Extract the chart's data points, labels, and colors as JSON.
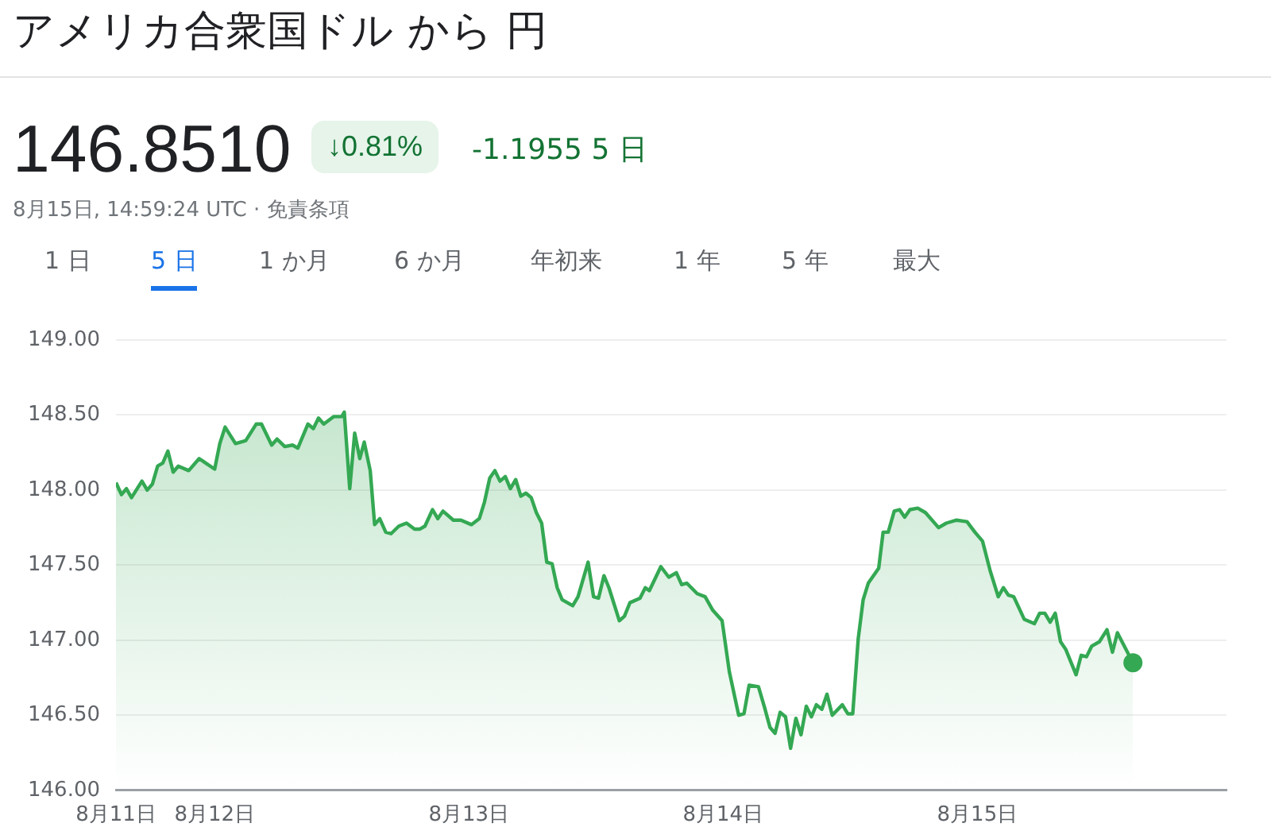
{
  "chart_data": {
    "type": "area",
    "title": "アメリカ合衆国ドル から 円",
    "annotations": [
      "146.8510",
      "↓0.81%",
      "-1.1955 5 日",
      "8月15日, 14:59:24 UTC · 免責条項",
      "1 日",
      "5 日",
      "1 か月",
      "6 か月",
      "年初来",
      "1 年",
      "5 年",
      "最大"
    ],
    "series": [
      {
        "color": "#34a853",
        "x": [
          "--08-11T14:41",
          "--08-11T15:12",
          "--08-11T15:40",
          "--08-11T16:09",
          "--08-11T17:08",
          "--08-11T17:38",
          "--08-11T18:07",
          "--08-11T18:37",
          "--08-11T19:06",
          "--08-11T19:35",
          "--08-11T20:05",
          "--08-11T20:34",
          "--08-11T21:33",
          "--08-11T22:32",
          "--08-12T00:00",
          "--08-12T00:29",
          "--08-12T00:59",
          "--08-12T01:58",
          "--08-12T02:56",
          "--08-12T03:55",
          "--08-12T04:25",
          "--08-12T05:23",
          "--08-12T05:53",
          "--08-12T06:37",
          "--08-12T07:21",
          "--08-12T07:51",
          "--08-12T08:48",
          "--08-12T09:19",
          "--08-12T09:48",
          "--08-12T10:18",
          "--08-12T11:15",
          "--08-12T12:00",
          "--08-12T12:14",
          "--08-12T12:45",
          "--08-12T13:13",
          "--08-12T13:42",
          "--08-12T14:07",
          "--08-12T14:41",
          "--08-12T15:06",
          "--08-12T15:35",
          "--08-12T16:09",
          "--08-12T16:39",
          "--08-12T17:23",
          "--08-12T18:07",
          "--08-12T18:52",
          "--08-12T19:21",
          "--08-12T19:51",
          "--08-12T20:34",
          "--08-12T21:04",
          "--08-12T21:33",
          "--08-12T22:32",
          "--08-12T23:15",
          "--08-13T00:14",
          "--08-13T00:59",
          "--08-13T01:28",
          "--08-13T01:58",
          "--08-13T02:27",
          "--08-13T02:56",
          "--08-13T03:26",
          "--08-13T03:55",
          "--08-13T04:25",
          "--08-13T04:54",
          "--08-13T05:23",
          "--08-13T05:53",
          "--08-13T06:22",
          "--08-13T06:52",
          "--08-13T07:21",
          "--08-13T07:51",
          "--08-13T08:20",
          "--08-13T08:48",
          "--08-13T09:48",
          "--08-13T10:18",
          "--08-13T11:15",
          "--08-13T11:46",
          "--08-13T12:14",
          "--08-13T12:45",
          "--08-13T13:13",
          "--08-13T14:12",
          "--08-13T14:41",
          "--08-13T15:12",
          "--08-13T16:09",
          "--08-13T16:39",
          "--08-13T17:02",
          "--08-13T18:07",
          "--08-13T18:52",
          "--08-13T19:35",
          "--08-13T20:05",
          "--08-13T20:34",
          "--08-13T21:33",
          "--08-13T22:18",
          "--08-13T23:01",
          "--08-13T23:54",
          "--08-14T00:35",
          "--08-14T01:28",
          "--08-14T01:58",
          "--08-14T02:27",
          "--08-14T03:20",
          "--08-14T03:55",
          "--08-14T04:25",
          "--08-14T04:54",
          "--08-14T05:23",
          "--08-14T05:53",
          "--08-14T06:22",
          "--08-14T06:52",
          "--08-14T07:21",
          "--08-14T07:51",
          "--08-14T08:20",
          "--08-14T08:48",
          "--08-14T09:19",
          "--08-14T09:48",
          "--08-14T10:18",
          "--08-14T11:15",
          "--08-14T11:46",
          "--08-14T12:14",
          "--08-14T12:45",
          "--08-14T13:13",
          "--08-14T13:42",
          "--08-14T14:41",
          "--08-14T15:06",
          "--08-14T15:35",
          "--08-14T16:09",
          "--08-14T16:39",
          "--08-14T17:08",
          "--08-14T17:38",
          "--08-14T18:22",
          "--08-14T19:06",
          "--08-14T20:20",
          "--08-14T21:04",
          "--08-14T22:02",
          "--08-14T23:01",
          "--08-14T23:46",
          "--08-15T00:29",
          "--08-15T01:13",
          "--08-15T01:58",
          "--08-15T02:27",
          "--08-15T02:56",
          "--08-15T03:26",
          "--08-15T04:25",
          "--08-15T05:23",
          "--08-15T05:53",
          "--08-15T06:22",
          "--08-15T06:52",
          "--08-15T07:21",
          "--08-15T07:51",
          "--08-15T08:20",
          "--08-15T09:19",
          "--08-15T09:48",
          "--08-15T10:18",
          "--08-15T10:47",
          "--08-15T11:31",
          "--08-15T12:14",
          "--08-15T12:45",
          "--08-15T13:13",
          "--08-15T14:41"
        ],
        "values": [
          148.05,
          147.97,
          148.01,
          147.95,
          148.06,
          148.0,
          148.04,
          148.16,
          148.18,
          148.26,
          148.12,
          148.16,
          148.13,
          148.21,
          148.14,
          148.31,
          148.42,
          148.31,
          148.33,
          148.44,
          148.44,
          148.3,
          148.34,
          148.29,
          148.3,
          148.28,
          148.44,
          148.41,
          148.48,
          148.44,
          148.49,
          148.49,
          148.52,
          148.01,
          148.38,
          148.21,
          148.32,
          148.13,
          147.77,
          147.81,
          147.72,
          147.71,
          147.76,
          147.78,
          147.74,
          147.74,
          147.76,
          147.87,
          147.81,
          147.86,
          147.8,
          147.8,
          147.77,
          147.81,
          147.92,
          148.08,
          148.13,
          148.06,
          148.09,
          148.01,
          148.07,
          147.96,
          147.98,
          147.95,
          147.85,
          147.78,
          147.52,
          147.51,
          147.35,
          147.27,
          147.23,
          147.29,
          147.52,
          147.29,
          147.28,
          147.43,
          147.35,
          147.13,
          147.16,
          147.25,
          147.28,
          147.35,
          147.33,
          147.49,
          147.42,
          147.45,
          147.37,
          147.38,
          147.31,
          147.29,
          147.2,
          147.13,
          146.79,
          146.5,
          146.51,
          146.7,
          146.69,
          146.55,
          146.42,
          146.38,
          146.52,
          146.49,
          146.28,
          146.48,
          146.37,
          146.56,
          146.49,
          146.57,
          146.54,
          146.64,
          146.5,
          146.57,
          146.51,
          146.51,
          147.01,
          147.27,
          147.38,
          147.48,
          147.72,
          147.72,
          147.86,
          147.87,
          147.82,
          147.87,
          147.88,
          147.85,
          147.75,
          147.78,
          147.8,
          147.79,
          147.72,
          147.66,
          147.46,
          147.29,
          147.35,
          147.3,
          147.29,
          147.14,
          147.11,
          147.18,
          147.18,
          147.12,
          147.18,
          146.99,
          146.94,
          146.77,
          146.9,
          146.89,
          146.96,
          146.99,
          147.07,
          146.92,
          147.05,
          146.85
        ]
      }
    ],
    "xlim": [
      "--08-11T14:41",
      "--08-15T23:31"
    ],
    "xticks": [
      {
        "value": "--08-11T14:41",
        "label": "8月11日"
      },
      {
        "value": "--08-12",
        "label": "8月12日"
      },
      {
        "value": "--08-13",
        "label": "8月13日"
      },
      {
        "value": "--08-14",
        "label": "8月14日"
      },
      {
        "value": "--08-15",
        "label": "8月15日"
      }
    ],
    "ylim": [
      146,
      149
    ],
    "yticks": [
      {
        "value": 146,
        "label": "146.00"
      },
      {
        "value": 146.5,
        "label": "146.50"
      },
      {
        "value": 147,
        "label": "147.00"
      },
      {
        "value": 147.5,
        "label": "147.50"
      },
      {
        "value": 148,
        "label": "148.00"
      },
      {
        "value": 148.5,
        "label": "148.50"
      },
      {
        "value": 149,
        "label": "149.00"
      }
    ],
    "grid": "y",
    "legend": false
  }
}
